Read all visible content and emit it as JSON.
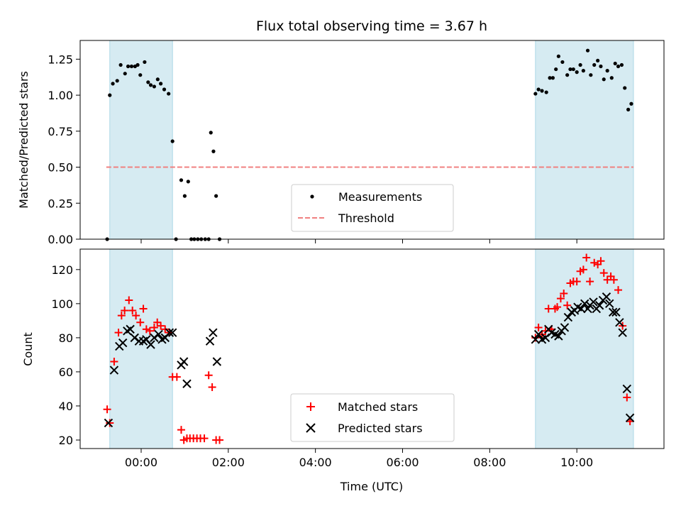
{
  "chart_data": [
    {
      "id": "top",
      "type": "scatter",
      "title": "Flux total observing time = 3.67 h",
      "xlabel": "",
      "ylabel": "Matched/Predicted stars",
      "xlim": [
        -1.4,
        12
      ],
      "ylim": [
        0,
        1.38
      ],
      "yticks": [
        0.0,
        0.25,
        0.5,
        0.75,
        1.0,
        1.25
      ],
      "ytick_labels": [
        "0.00",
        "0.25",
        "0.50",
        "0.75",
        "1.00",
        "1.25"
      ],
      "xticks": [
        0,
        2,
        4,
        6,
        8,
        10
      ],
      "shaded_intervals": [
        [
          -0.72,
          0.72
        ],
        [
          9.05,
          11.3
        ]
      ],
      "shade_color": "#add8e6",
      "threshold": {
        "name": "Threshold",
        "value": 0.5,
        "x_range": [
          -0.8,
          11.3
        ],
        "color": "#f08080"
      },
      "series": [
        {
          "name": "Measurements",
          "color": "#000000",
          "marker": "dot",
          "points": [
            [
              -0.78,
              0.0
            ],
            [
              -0.72,
              1.0
            ],
            [
              -0.65,
              1.08
            ],
            [
              -0.55,
              1.1
            ],
            [
              -0.47,
              1.21
            ],
            [
              -0.37,
              1.15
            ],
            [
              -0.3,
              1.2
            ],
            [
              -0.22,
              1.2
            ],
            [
              -0.14,
              1.2
            ],
            [
              -0.08,
              1.21
            ],
            [
              -0.02,
              1.14
            ],
            [
              0.08,
              1.23
            ],
            [
              0.16,
              1.09
            ],
            [
              0.22,
              1.07
            ],
            [
              0.3,
              1.06
            ],
            [
              0.38,
              1.11
            ],
            [
              0.45,
              1.08
            ],
            [
              0.53,
              1.04
            ],
            [
              0.63,
              1.01
            ],
            [
              0.72,
              0.68
            ],
            [
              0.8,
              0.0
            ],
            [
              0.92,
              0.41
            ],
            [
              1.0,
              0.3
            ],
            [
              1.08,
              0.4
            ],
            [
              1.15,
              0.0
            ],
            [
              1.22,
              0.0
            ],
            [
              1.3,
              0.0
            ],
            [
              1.38,
              0.0
            ],
            [
              1.47,
              0.0
            ],
            [
              1.55,
              0.0
            ],
            [
              1.6,
              0.74
            ],
            [
              1.66,
              0.61
            ],
            [
              1.72,
              0.3
            ],
            [
              1.8,
              0.0
            ],
            [
              9.05,
              1.01
            ],
            [
              9.12,
              1.04
            ],
            [
              9.2,
              1.03
            ],
            [
              9.3,
              1.02
            ],
            [
              9.38,
              1.12
            ],
            [
              9.45,
              1.12
            ],
            [
              9.52,
              1.18
            ],
            [
              9.58,
              1.27
            ],
            [
              9.67,
              1.23
            ],
            [
              9.78,
              1.14
            ],
            [
              9.85,
              1.18
            ],
            [
              9.92,
              1.18
            ],
            [
              10.0,
              1.16
            ],
            [
              10.08,
              1.21
            ],
            [
              10.15,
              1.17
            ],
            [
              10.25,
              1.31
            ],
            [
              10.32,
              1.14
            ],
            [
              10.4,
              1.21
            ],
            [
              10.48,
              1.24
            ],
            [
              10.55,
              1.2
            ],
            [
              10.62,
              1.11
            ],
            [
              10.7,
              1.17
            ],
            [
              10.8,
              1.12
            ],
            [
              10.88,
              1.22
            ],
            [
              10.95,
              1.2
            ],
            [
              11.03,
              1.21
            ],
            [
              11.1,
              1.05
            ],
            [
              11.18,
              0.9
            ],
            [
              11.25,
              0.94
            ]
          ]
        }
      ],
      "legend": {
        "placement": "lower-center",
        "entries": [
          "Measurements",
          "Threshold"
        ]
      }
    },
    {
      "id": "bottom",
      "type": "scatter",
      "title": "",
      "xlabel": "Time (UTC)",
      "ylabel": "Count",
      "xlim": [
        -1.4,
        12
      ],
      "ylim": [
        15,
        132
      ],
      "yticks": [
        20,
        40,
        60,
        80,
        100,
        120
      ],
      "ytick_labels": [
        "20",
        "40",
        "60",
        "80",
        "100",
        "120"
      ],
      "xticks": [
        0,
        2,
        4,
        6,
        8,
        10
      ],
      "xtick_labels": [
        "00:00",
        "02:00",
        "04:00",
        "06:00",
        "08:00",
        "10:00"
      ],
      "shaded_intervals": [
        [
          -0.72,
          0.72
        ],
        [
          9.05,
          11.3
        ]
      ],
      "shade_color": "#add8e6",
      "series": [
        {
          "name": "Matched stars",
          "color": "#ff0000",
          "marker": "plus",
          "points": [
            [
              -0.78,
              38
            ],
            [
              -0.72,
              30
            ],
            [
              -0.62,
              66
            ],
            [
              -0.52,
              83
            ],
            [
              -0.45,
              93
            ],
            [
              -0.38,
              96
            ],
            [
              -0.28,
              102
            ],
            [
              -0.2,
              96
            ],
            [
              -0.12,
              93
            ],
            [
              -0.02,
              89
            ],
            [
              0.05,
              97
            ],
            [
              0.12,
              85
            ],
            [
              0.2,
              84
            ],
            [
              0.3,
              86
            ],
            [
              0.37,
              89
            ],
            [
              0.45,
              87
            ],
            [
              0.55,
              85
            ],
            [
              0.65,
              83
            ],
            [
              0.72,
              57
            ],
            [
              0.82,
              57
            ],
            [
              0.92,
              26
            ],
            [
              0.98,
              20
            ],
            [
              1.05,
              21
            ],
            [
              1.12,
              21
            ],
            [
              1.2,
              21
            ],
            [
              1.28,
              21
            ],
            [
              1.36,
              21
            ],
            [
              1.45,
              21
            ],
            [
              1.55,
              58
            ],
            [
              1.63,
              51
            ],
            [
              1.72,
              20
            ],
            [
              1.8,
              20
            ],
            [
              9.05,
              80
            ],
            [
              9.12,
              86
            ],
            [
              9.2,
              82
            ],
            [
              9.28,
              84
            ],
            [
              9.35,
              97
            ],
            [
              9.42,
              85
            ],
            [
              9.5,
              97
            ],
            [
              9.55,
              98
            ],
            [
              9.63,
              103
            ],
            [
              9.7,
              106
            ],
            [
              9.78,
              99
            ],
            [
              9.85,
              112
            ],
            [
              9.92,
              113
            ],
            [
              10.0,
              113
            ],
            [
              10.08,
              119
            ],
            [
              10.15,
              120
            ],
            [
              10.22,
              127
            ],
            [
              10.3,
              113
            ],
            [
              10.4,
              124
            ],
            [
              10.48,
              123
            ],
            [
              10.55,
              125
            ],
            [
              10.62,
              118
            ],
            [
              10.7,
              114
            ],
            [
              10.78,
              116
            ],
            [
              10.85,
              114
            ],
            [
              10.95,
              108
            ],
            [
              11.05,
              87
            ],
            [
              11.15,
              45
            ],
            [
              11.22,
              31
            ]
          ]
        },
        {
          "name": "Predicted stars",
          "color": "#000000",
          "marker": "x",
          "points": [
            [
              -0.75,
              30
            ],
            [
              -0.62,
              61
            ],
            [
              -0.5,
              75
            ],
            [
              -0.42,
              77
            ],
            [
              -0.32,
              84
            ],
            [
              -0.25,
              85
            ],
            [
              -0.15,
              80
            ],
            [
              -0.05,
              78
            ],
            [
              0.05,
              78
            ],
            [
              0.12,
              79
            ],
            [
              0.22,
              76
            ],
            [
              0.3,
              80
            ],
            [
              0.4,
              82
            ],
            [
              0.48,
              79
            ],
            [
              0.55,
              80
            ],
            [
              0.65,
              83
            ],
            [
              0.72,
              83
            ],
            [
              0.92,
              64
            ],
            [
              0.98,
              66
            ],
            [
              1.05,
              53
            ],
            [
              1.58,
              78
            ],
            [
              1.65,
              83
            ],
            [
              1.74,
              66
            ],
            [
              9.05,
              79
            ],
            [
              9.12,
              82
            ],
            [
              9.2,
              79
            ],
            [
              9.28,
              80
            ],
            [
              9.35,
              85
            ],
            [
              9.42,
              83
            ],
            [
              9.5,
              82
            ],
            [
              9.58,
              81
            ],
            [
              9.65,
              84
            ],
            [
              9.72,
              86
            ],
            [
              9.8,
              92
            ],
            [
              9.88,
              95
            ],
            [
              9.95,
              96
            ],
            [
              10.02,
              98
            ],
            [
              10.1,
              97
            ],
            [
              10.18,
              100
            ],
            [
              10.25,
              97
            ],
            [
              10.3,
              99
            ],
            [
              10.38,
              101
            ],
            [
              10.45,
              97
            ],
            [
              10.52,
              99
            ],
            [
              10.6,
              102
            ],
            [
              10.68,
              104
            ],
            [
              10.75,
              100
            ],
            [
              10.83,
              95
            ],
            [
              10.9,
              95
            ],
            [
              10.98,
              89
            ],
            [
              11.05,
              83
            ],
            [
              11.15,
              50
            ],
            [
              11.22,
              33
            ]
          ]
        }
      ],
      "legend": {
        "placement": "lower-center",
        "entries": [
          "Matched stars",
          "Predicted stars"
        ]
      }
    }
  ]
}
